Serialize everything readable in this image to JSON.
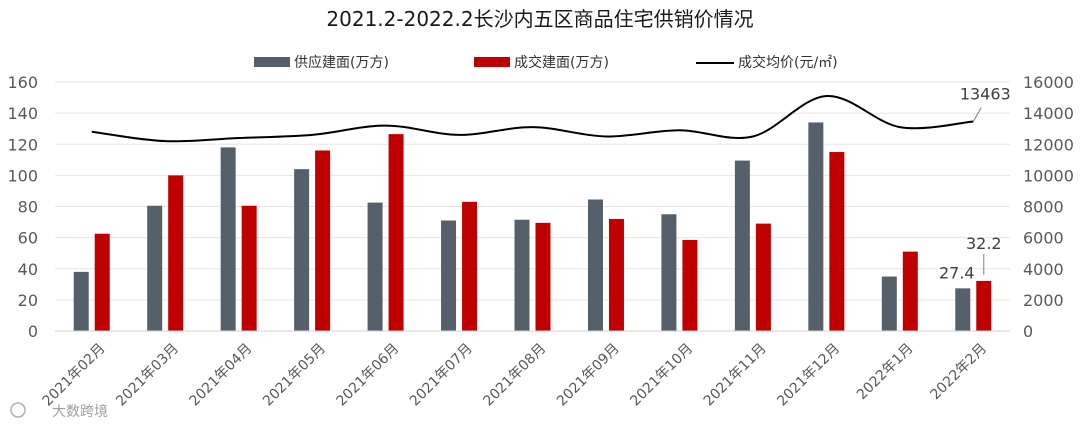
{
  "chart_data": {
    "type": "bar",
    "title": "2021.2-2022.2长沙内五区商品住宅供销价情况",
    "categories": [
      "2021年02月",
      "2021年03月",
      "2021年04月",
      "2021年05月",
      "2021年06月",
      "2021年07月",
      "2021年08月",
      "2021年09月",
      "2021年10月",
      "2021年11月",
      "2021年12月",
      "2022年1月",
      "2022年2月"
    ],
    "series": [
      {
        "name": "供应建面(万方)",
        "axis": "left",
        "color": "#56606b",
        "values": [
          38,
          80.5,
          118,
          104,
          82.5,
          71,
          71.5,
          84.5,
          75,
          109.5,
          134,
          35,
          27.4
        ]
      },
      {
        "name": "成交建面(万方)",
        "axis": "left",
        "color": "#c00000",
        "values": [
          62.5,
          100,
          80.5,
          116,
          126.5,
          83,
          69.5,
          72,
          58.5,
          69,
          115,
          51,
          32.2
        ]
      },
      {
        "name": "成交均价(元/㎡)",
        "axis": "right",
        "type": "line",
        "color": "#000000",
        "values": [
          12800,
          12200,
          12400,
          12600,
          13200,
          12600,
          13100,
          12500,
          12900,
          12500,
          15100,
          13100,
          13463
        ]
      }
    ],
    "ylim_left": [
      0,
      160
    ],
    "yticks_left": [
      0,
      20,
      40,
      60,
      80,
      100,
      120,
      140,
      160
    ],
    "ylim_right": [
      0,
      16000
    ],
    "yticks_right": [
      0,
      2000,
      4000,
      6000,
      8000,
      10000,
      12000,
      14000,
      16000
    ],
    "annotations": [
      "27.4",
      "32.2",
      "13463"
    ],
    "legend_position": "top-center"
  },
  "watermark": {
    "icon": "weibo-icon",
    "text": "大数跨境"
  }
}
